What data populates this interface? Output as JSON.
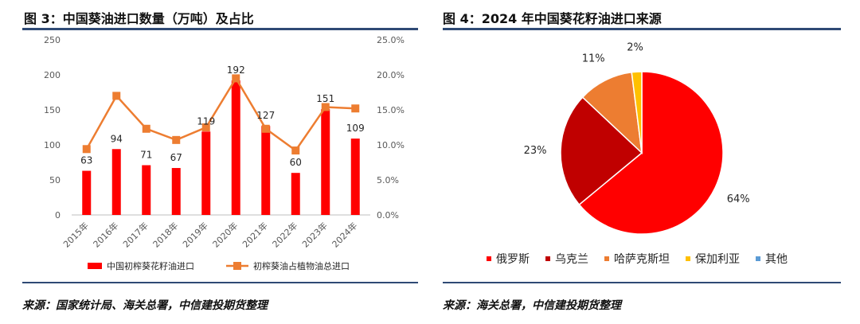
{
  "left": {
    "title": "图 3：中国葵油进口数量（万吨）及占比",
    "source": "来源：国家统计局、海关总署，中信建投期货整理"
  },
  "right": {
    "title": "图 4：2024 年中国葵花籽油进口来源",
    "source": "来源：海关总署，中信建投期货整理"
  },
  "colors": {
    "red": "#ff0000",
    "orange": "#ed7d31",
    "darkred": "#c00000",
    "amber": "#ed7d31",
    "yellow": "#ffc000",
    "blue": "#5b9bd5",
    "rule": "#2f4a75"
  },
  "chart_data": [
    {
      "type": "bar",
      "title": "中国葵油进口数量（万吨）及占比",
      "categories": [
        "2015年",
        "2016年",
        "2017年",
        "2018年",
        "2019年",
        "2020年",
        "2021年",
        "2022年",
        "2023年",
        "2024年"
      ],
      "series": [
        {
          "name": "中国初榨葵花籽油进口",
          "type": "bar",
          "axis": "left",
          "values": [
            63,
            94,
            71,
            67,
            119,
            192,
            127,
            60,
            151,
            109
          ],
          "labels": [
            "63",
            "94",
            "71",
            "67",
            "119",
            "192",
            "127",
            "60",
            "151",
            "109"
          ]
        },
        {
          "name": "初榨葵油占植物油总进口",
          "type": "line",
          "axis": "right",
          "values": [
            0.094,
            0.17,
            0.123,
            0.107,
            0.125,
            0.195,
            0.123,
            0.092,
            0.154,
            0.152
          ]
        }
      ],
      "yticks_left": [
        "0",
        "50",
        "100",
        "150",
        "200",
        "250"
      ],
      "ylim_left": [
        0,
        250
      ],
      "yticks_right": [
        "0.0%",
        "5.0%",
        "10.0%",
        "15.0%",
        "20.0%",
        "25.0%"
      ],
      "ylim_right": [
        0,
        0.25
      ],
      "legend_position": "bottom"
    },
    {
      "type": "pie",
      "title": "2024 年中国葵花籽油进口来源",
      "labels": [
        "俄罗斯",
        "乌克兰",
        "哈萨克斯坦",
        "保加利亚",
        "其他"
      ],
      "values": [
        64,
        23,
        11,
        2,
        0
      ],
      "value_labels": [
        "64%",
        "23%",
        "11%",
        "2%",
        ""
      ],
      "colors": [
        "#ff0000",
        "#c00000",
        "#ed7d31",
        "#ffc000",
        "#5b9bd5"
      ],
      "legend_position": "bottom"
    }
  ]
}
